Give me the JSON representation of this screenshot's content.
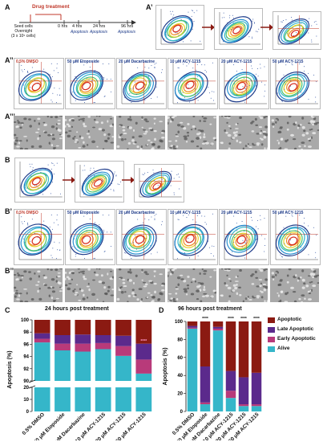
{
  "panels": {
    "A": "A",
    "A1": "A’",
    "A2": "A’’",
    "A3": "A’’’",
    "B": "B",
    "B1": "B’",
    "B2": "B’’",
    "C": "C",
    "D": "D"
  },
  "timeline": {
    "drug_treatment": "Drug treatment",
    "seed": [
      "Seed cells",
      "Overnight",
      "(3 x 10⁵ cells)"
    ],
    "points": [
      {
        "t": "0 hrs",
        "sub": ""
      },
      {
        "t": "4 hrs",
        "sub": "Apoptosis"
      },
      {
        "t": "24 hrs",
        "sub": "Apoptosis"
      },
      {
        "t": "96 hrs",
        "sub": "Apoptosis"
      }
    ]
  },
  "conditions": [
    "0.5% DMSO",
    "50 μM Etoposide",
    "20 μM Dacarbazine",
    "10 μM ACY-1215",
    "20 μM ACY-1215",
    "50 μM ACY-1215"
  ],
  "colors": {
    "apoptotic": "#8b1a12",
    "late_apoptotic": "#5b2a8c",
    "early_apoptotic": "#b83a7a",
    "alive": "#35b6c9",
    "title_red": "#c0392b",
    "title_blue": "#1f3c8a"
  },
  "chart_C": {
    "title": "24 hours post treatment",
    "ylabel": "Apoptosis (%)",
    "yticks_top": [
      "90",
      "92",
      "94",
      "96",
      "98",
      "100"
    ],
    "yticks_bottom": [
      "0",
      "10",
      "20"
    ],
    "stars": "****"
  },
  "chart_D": {
    "title": "96 hours post treatment",
    "ylabel": "Apoptosis (%)",
    "yticks": [
      "0",
      "20",
      "40",
      "60",
      "80",
      "100"
    ],
    "stars": "****"
  },
  "legend": [
    "Apoptotic",
    "Late Apoptotic",
    "Early Apoptotic",
    "Alive"
  ],
  "chart_data": [
    {
      "type": "bar",
      "title": "24 hours post treatment",
      "ylabel": "Apoptosis (%)",
      "categories": [
        "0.5% DMSO",
        "50 μM Etoposide",
        "20 μM Dacarbazine",
        "10 μM ACY-1215",
        "20 μM ACY-1215",
        "50 μM ACY-1215"
      ],
      "stacked": true,
      "broken_axis": {
        "lower": [
          0,
          20
        ],
        "upper": [
          90,
          100
        ]
      },
      "series": [
        {
          "name": "Alive",
          "values": [
            96.3,
            95.0,
            94.8,
            95.2,
            94.1,
            91.2
          ]
        },
        {
          "name": "Early Apoptotic",
          "values": [
            0.6,
            1.1,
            1.3,
            1.0,
            1.6,
            2.3
          ]
        },
        {
          "name": "Late Apoptotic",
          "values": [
            0.9,
            1.4,
            1.5,
            1.3,
            1.7,
            2.6
          ]
        },
        {
          "name": "Apoptotic",
          "values": [
            2.2,
            2.5,
            2.4,
            2.5,
            2.6,
            3.9
          ]
        }
      ]
    },
    {
      "type": "bar",
      "title": "96 hours post treatment",
      "ylabel": "Apoptosis (%)",
      "categories": [
        "0.5% DMSO",
        "50 μM Etoposide",
        "20 μM Dacarbazine",
        "10 μM ACY-1215",
        "20 μM ACY-1215",
        "50 μM ACY-1215"
      ],
      "stacked": true,
      "ylim": [
        0,
        100
      ],
      "series": [
        {
          "name": "Alive",
          "values": [
            92,
            8,
            90,
            15,
            6,
            6
          ]
        },
        {
          "name": "Early Apoptotic",
          "values": [
            1,
            2,
            2,
            8,
            2,
            2
          ]
        },
        {
          "name": "Late Apoptotic",
          "values": [
            2,
            40,
            2,
            22,
            30,
            35
          ]
        },
        {
          "name": "Apoptotic",
          "values": [
            5,
            50,
            6,
            55,
            62,
            57
          ]
        }
      ]
    }
  ]
}
